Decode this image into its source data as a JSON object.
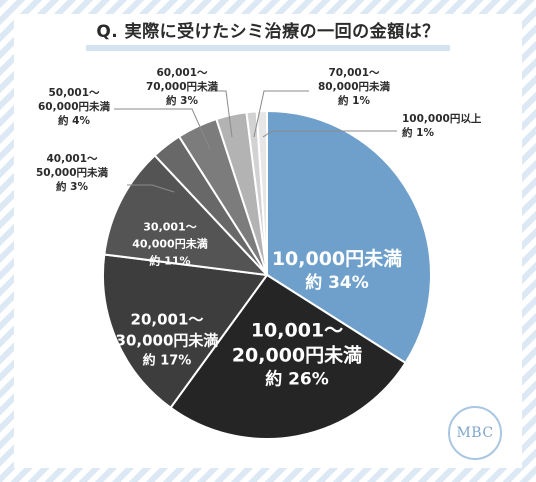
{
  "title": "Q. 実際に受けたシミ治療の一回の金額は？",
  "logo_text": "MBC",
  "colors": {
    "stripe": "#dce9f5",
    "accent": "#6ea0cb"
  },
  "chart_data": {
    "type": "pie",
    "title": "Q. 実際に受けたシミ治療の一回の金額は？",
    "start_angle": 0,
    "direction": "clockwise",
    "slices": [
      {
        "label_lines": [
          "10,000円未満",
          "約 34%"
        ],
        "value": 34,
        "color": "#6ea0cb"
      },
      {
        "label_lines": [
          "10,001〜",
          "20,000円未満",
          "約 26%"
        ],
        "value": 26,
        "color": "#252525"
      },
      {
        "label_lines": [
          "20,001〜",
          "30,000円未満",
          "約 17%"
        ],
        "value": 17,
        "color": "#3d3d3d"
      },
      {
        "label_lines": [
          "30,001〜",
          "40,000円未満",
          "約 11%"
        ],
        "value": 11,
        "color": "#545454"
      },
      {
        "label_lines": [
          "40,001〜",
          "50,000円未満",
          "約 3%"
        ],
        "value": 3,
        "color": "#686868"
      },
      {
        "label_lines": [
          "50,001〜",
          "60,000円未満",
          "約 4%"
        ],
        "value": 4,
        "color": "#7c7c7c"
      },
      {
        "label_lines": [
          "60,001〜",
          "70,000円未満",
          "約 3%"
        ],
        "value": 3,
        "color": "#b3b3b3"
      },
      {
        "label_lines": [
          "70,001〜",
          "80,000円未満",
          "約 1%"
        ],
        "value": 1,
        "color": "#d2d2d2"
      },
      {
        "label_lines": [
          "100,000円以上",
          "約 1%"
        ],
        "value": 1,
        "color": "#e6e6e6"
      }
    ]
  }
}
